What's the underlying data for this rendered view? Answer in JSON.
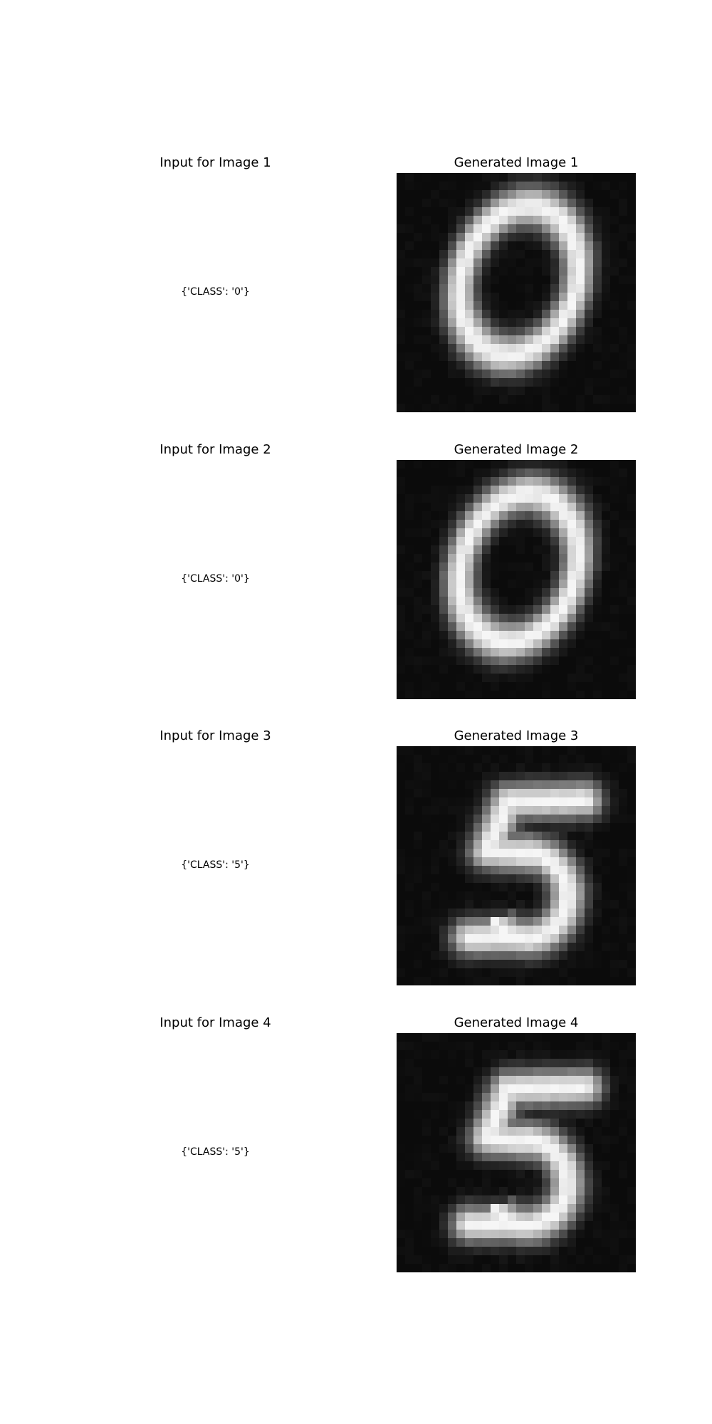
{
  "figure": {
    "panels": [
      {
        "input_title": "Input for Image 1",
        "input_text": "{'CLASS': '0'}",
        "generated_title": "Generated Image 1",
        "generated_digit": "0",
        "background": "#0b0b0b"
      },
      {
        "input_title": "Input for Image 2",
        "input_text": "{'CLASS': '0'}",
        "generated_title": "Generated Image 2",
        "generated_digit": "0",
        "background": "#0b0b0b"
      },
      {
        "input_title": "Input for Image 3",
        "input_text": "{'CLASS': '5'}",
        "generated_title": "Generated Image 3",
        "generated_digit": "5",
        "background": "#0b0b0b"
      },
      {
        "input_title": "Input for Image 4",
        "input_text": "{'CLASS': '5'}",
        "generated_title": "Generated Image 4",
        "generated_digit": "5",
        "background": "#0b0b0b"
      }
    ]
  }
}
